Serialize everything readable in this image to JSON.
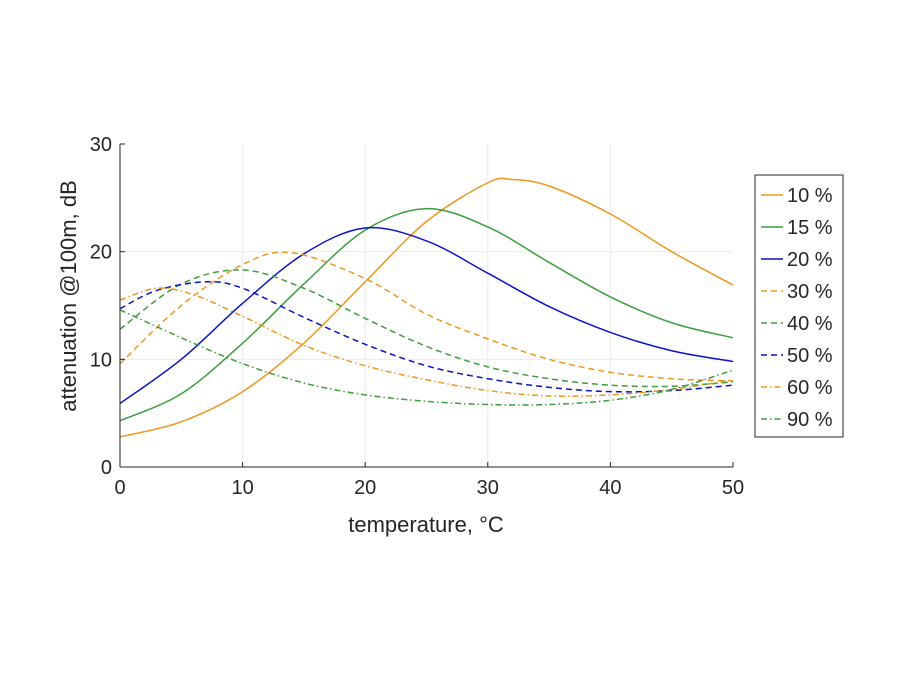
{
  "chart_data": {
    "type": "line",
    "title": "",
    "xlabel": "temperature, °C",
    "ylabel": "attenuation @100m, dB",
    "xlim": [
      0,
      50
    ],
    "ylim": [
      0,
      30
    ],
    "xticks": [
      0,
      10,
      20,
      30,
      40,
      50
    ],
    "yticks": [
      0,
      10,
      20,
      30
    ],
    "grid": true,
    "legend_position": "right",
    "series": [
      {
        "name": "10 %",
        "color": "#F0961E",
        "dash": "solid",
        "x": [
          0,
          5,
          10,
          15,
          20,
          25,
          30,
          32,
          35,
          40,
          45,
          50
        ],
        "y": [
          2.8,
          4.2,
          7.0,
          11.5,
          17.2,
          22.8,
          26.4,
          26.7,
          26.1,
          23.5,
          20.0,
          16.9
        ]
      },
      {
        "name": "15 %",
        "color": "#3C9E3C",
        "dash": "solid",
        "x": [
          0,
          5,
          10,
          15,
          20,
          25,
          30,
          35,
          40,
          45,
          50
        ],
        "y": [
          4.3,
          6.8,
          11.5,
          17.0,
          22.0,
          24.0,
          22.3,
          19.0,
          15.8,
          13.4,
          12.0
        ]
      },
      {
        "name": "20 %",
        "color": "#0A14C8",
        "dash": "solid",
        "x": [
          0,
          5,
          10,
          15,
          20,
          25,
          30,
          35,
          40,
          45,
          50
        ],
        "y": [
          5.9,
          10.0,
          15.2,
          19.8,
          22.2,
          21.0,
          18.0,
          14.9,
          12.5,
          10.8,
          9.8
        ]
      },
      {
        "name": "30 %",
        "color": "#F0961E",
        "dash": "dashed",
        "x": [
          0,
          5,
          10,
          14,
          20,
          25,
          30,
          35,
          40,
          45,
          50
        ],
        "y": [
          9.6,
          15.0,
          18.8,
          19.9,
          17.5,
          14.2,
          11.9,
          10.0,
          8.8,
          8.2,
          8.0
        ]
      },
      {
        "name": "40 %",
        "color": "#3C9E3C",
        "dash": "dashed",
        "x": [
          0,
          5,
          10,
          15,
          20,
          25,
          30,
          35,
          40,
          45,
          50
        ],
        "y": [
          12.8,
          17.0,
          18.3,
          16.6,
          13.8,
          11.2,
          9.3,
          8.2,
          7.6,
          7.5,
          7.9
        ]
      },
      {
        "name": "50 %",
        "color": "#0A14C8",
        "dash": "dashed",
        "x": [
          0,
          3,
          7,
          10,
          15,
          20,
          25,
          30,
          35,
          40,
          45,
          50
        ],
        "y": [
          14.7,
          16.4,
          17.2,
          16.6,
          13.9,
          11.4,
          9.4,
          8.2,
          7.4,
          7.0,
          7.1,
          7.6
        ]
      },
      {
        "name": "60 %",
        "color": "#F0961E",
        "dash": "dashdot",
        "x": [
          0,
          3,
          6,
          10,
          15,
          20,
          25,
          30,
          35,
          40,
          45,
          50
        ],
        "y": [
          15.5,
          16.6,
          16.0,
          14.0,
          11.3,
          9.4,
          8.1,
          7.1,
          6.6,
          6.7,
          7.2,
          8.1
        ]
      },
      {
        "name": "90 %",
        "color": "#3C9E3C",
        "dash": "dashdot",
        "x": [
          0,
          5,
          10,
          15,
          20,
          25,
          30,
          35,
          40,
          45,
          50
        ],
        "y": [
          14.6,
          12.0,
          9.6,
          7.8,
          6.7,
          6.1,
          5.8,
          5.8,
          6.2,
          7.2,
          9.0
        ]
      }
    ]
  }
}
